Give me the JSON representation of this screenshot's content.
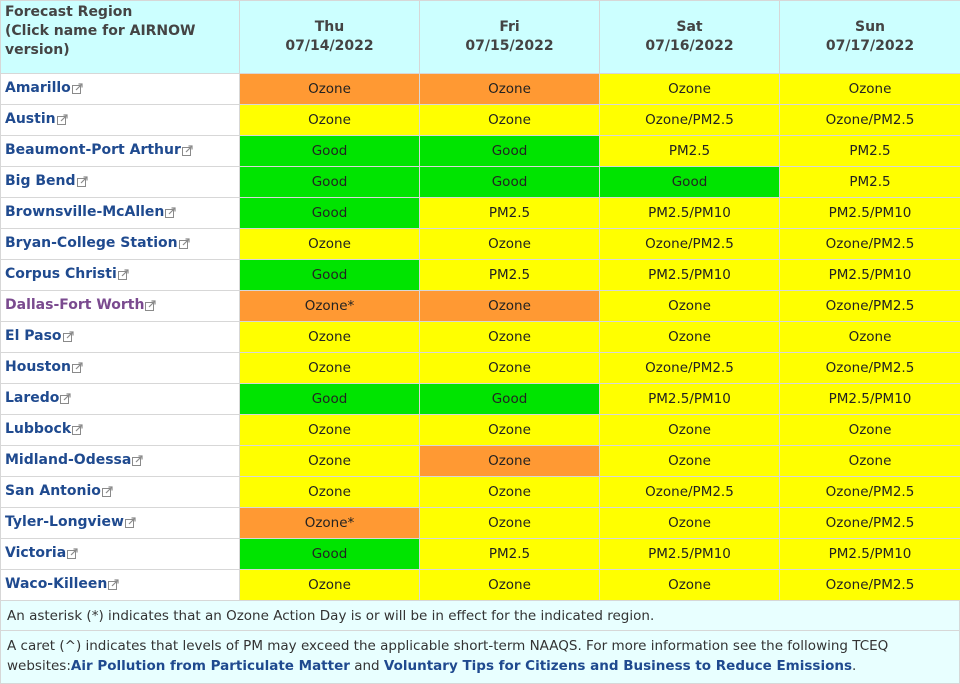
{
  "header": {
    "region_column": [
      "Forecast Region",
      "(Click name for AIRNOW",
      "version)"
    ],
    "days": [
      {
        "day": "Thu",
        "date": "07/14/2022"
      },
      {
        "day": "Fri",
        "date": "07/15/2022"
      },
      {
        "day": "Sat",
        "date": "07/16/2022"
      },
      {
        "day": "Sun",
        "date": "07/17/2022"
      }
    ]
  },
  "colors": {
    "ozone": "#ff9933",
    "moderate": "#ffff00",
    "good": "#00e400",
    "header_bg": "#ccffff",
    "note_bg": "#e8ffff",
    "link": "#1f4a8f",
    "visited_link": "#7a4a8f"
  },
  "icons": {
    "region_link": "external-link-icon"
  },
  "rows": [
    {
      "region": "Amarillo",
      "cells": [
        {
          "text": "Ozone",
          "level": "ozone"
        },
        {
          "text": "Ozone",
          "level": "ozone"
        },
        {
          "text": "Ozone",
          "level": "moderate"
        },
        {
          "text": "Ozone",
          "level": "moderate"
        }
      ]
    },
    {
      "region": "Austin",
      "cells": [
        {
          "text": "Ozone",
          "level": "moderate"
        },
        {
          "text": "Ozone",
          "level": "moderate"
        },
        {
          "text": "Ozone/PM2.5",
          "level": "moderate"
        },
        {
          "text": "Ozone/PM2.5",
          "level": "moderate"
        }
      ]
    },
    {
      "region": "Beaumont-Port Arthur",
      "cells": [
        {
          "text": "Good",
          "level": "good"
        },
        {
          "text": "Good",
          "level": "good"
        },
        {
          "text": "PM2.5",
          "level": "moderate"
        },
        {
          "text": "PM2.5",
          "level": "moderate"
        }
      ]
    },
    {
      "region": "Big Bend",
      "cells": [
        {
          "text": "Good",
          "level": "good"
        },
        {
          "text": "Good",
          "level": "good"
        },
        {
          "text": "Good",
          "level": "good"
        },
        {
          "text": "PM2.5",
          "level": "moderate"
        }
      ]
    },
    {
      "region": "Brownsville-McAllen",
      "cells": [
        {
          "text": "Good",
          "level": "good"
        },
        {
          "text": "PM2.5",
          "level": "moderate"
        },
        {
          "text": "PM2.5/PM10",
          "level": "moderate"
        },
        {
          "text": "PM2.5/PM10",
          "level": "moderate"
        }
      ]
    },
    {
      "region": "Bryan-College Station",
      "cells": [
        {
          "text": "Ozone",
          "level": "moderate"
        },
        {
          "text": "Ozone",
          "level": "moderate"
        },
        {
          "text": "Ozone/PM2.5",
          "level": "moderate"
        },
        {
          "text": "Ozone/PM2.5",
          "level": "moderate"
        }
      ]
    },
    {
      "region": "Corpus Christi",
      "cells": [
        {
          "text": "Good",
          "level": "good"
        },
        {
          "text": "PM2.5",
          "level": "moderate"
        },
        {
          "text": "PM2.5/PM10",
          "level": "moderate"
        },
        {
          "text": "PM2.5/PM10",
          "level": "moderate"
        }
      ]
    },
    {
      "region": "Dallas-Fort Worth",
      "visited": true,
      "cells": [
        {
          "text": "Ozone*",
          "level": "ozone"
        },
        {
          "text": "Ozone",
          "level": "ozone"
        },
        {
          "text": "Ozone",
          "level": "moderate"
        },
        {
          "text": "Ozone/PM2.5",
          "level": "moderate"
        }
      ]
    },
    {
      "region": "El Paso",
      "cells": [
        {
          "text": "Ozone",
          "level": "moderate"
        },
        {
          "text": "Ozone",
          "level": "moderate"
        },
        {
          "text": "Ozone",
          "level": "moderate"
        },
        {
          "text": "Ozone",
          "level": "moderate"
        }
      ]
    },
    {
      "region": "Houston",
      "cells": [
        {
          "text": "Ozone",
          "level": "moderate"
        },
        {
          "text": "Ozone",
          "level": "moderate"
        },
        {
          "text": "Ozone/PM2.5",
          "level": "moderate"
        },
        {
          "text": "Ozone/PM2.5",
          "level": "moderate"
        }
      ]
    },
    {
      "region": "Laredo",
      "cells": [
        {
          "text": "Good",
          "level": "good"
        },
        {
          "text": "Good",
          "level": "good"
        },
        {
          "text": "PM2.5/PM10",
          "level": "moderate"
        },
        {
          "text": "PM2.5/PM10",
          "level": "moderate"
        }
      ]
    },
    {
      "region": "Lubbock",
      "cells": [
        {
          "text": "Ozone",
          "level": "moderate"
        },
        {
          "text": "Ozone",
          "level": "moderate"
        },
        {
          "text": "Ozone",
          "level": "moderate"
        },
        {
          "text": "Ozone",
          "level": "moderate"
        }
      ]
    },
    {
      "region": "Midland-Odessa",
      "cells": [
        {
          "text": "Ozone",
          "level": "moderate"
        },
        {
          "text": "Ozone",
          "level": "ozone"
        },
        {
          "text": "Ozone",
          "level": "moderate"
        },
        {
          "text": "Ozone",
          "level": "moderate"
        }
      ]
    },
    {
      "region": "San Antonio",
      "cells": [
        {
          "text": "Ozone",
          "level": "moderate"
        },
        {
          "text": "Ozone",
          "level": "moderate"
        },
        {
          "text": "Ozone/PM2.5",
          "level": "moderate"
        },
        {
          "text": "Ozone/PM2.5",
          "level": "moderate"
        }
      ]
    },
    {
      "region": "Tyler-Longview",
      "cells": [
        {
          "text": "Ozone*",
          "level": "ozone"
        },
        {
          "text": "Ozone",
          "level": "moderate"
        },
        {
          "text": "Ozone",
          "level": "moderate"
        },
        {
          "text": "Ozone/PM2.5",
          "level": "moderate"
        }
      ]
    },
    {
      "region": "Victoria",
      "cells": [
        {
          "text": "Good",
          "level": "good"
        },
        {
          "text": "PM2.5",
          "level": "moderate"
        },
        {
          "text": "PM2.5/PM10",
          "level": "moderate"
        },
        {
          "text": "PM2.5/PM10",
          "level": "moderate"
        }
      ]
    },
    {
      "region": "Waco-Killeen",
      "cells": [
        {
          "text": "Ozone",
          "level": "moderate"
        },
        {
          "text": "Ozone",
          "level": "moderate"
        },
        {
          "text": "Ozone",
          "level": "moderate"
        },
        {
          "text": "Ozone/PM2.5",
          "level": "moderate"
        }
      ]
    }
  ],
  "notes": {
    "asterisk": "An asterisk (*) indicates that an Ozone Action Day is or will be in effect for the indicated region.",
    "caret_text": "A caret (^) indicates that levels of PM may exceed the applicable short-term NAAQS. For more information see the following TCEQ websites:",
    "link1": "Air Pollution from Particulate Matter",
    "and": " and ",
    "link2": "Voluntary Tips for Citizens and Business to Reduce Emissions",
    "end": "."
  }
}
